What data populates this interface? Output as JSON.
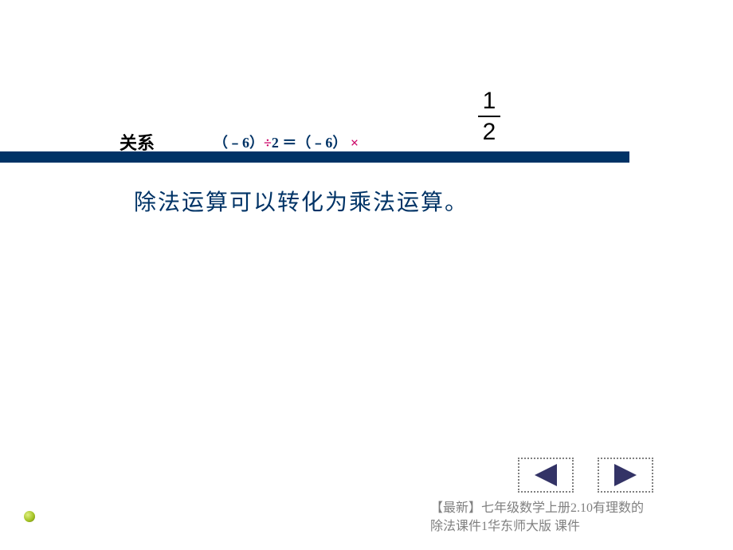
{
  "relation_label": "关系",
  "equation": {
    "left_operand": "（﹣6）",
    "divide_symbol": "÷",
    "divisor": "2",
    "equals": " ＝",
    "right_operand": "（﹣6）",
    "multiply_symbol": "×",
    "colors": {
      "operand": "#003366",
      "operator_divide": "#cc0066",
      "operator_multiply": "#cc0066"
    }
  },
  "fraction": {
    "numerator": "1",
    "denominator": "2"
  },
  "statement": "除法运算可以转化为乘法运算。",
  "footer": "【最新】七年级数学上册2.10有理数的除法课件1华东师大版 课件",
  "colors": {
    "underline_bar": "#003366",
    "statement_text": "#003366",
    "nav_arrow": "#333366",
    "nav_border": "#808080",
    "footer_text": "#808080",
    "background": "#ffffff"
  },
  "nav": {
    "prev_label": "previous",
    "next_label": "next"
  }
}
